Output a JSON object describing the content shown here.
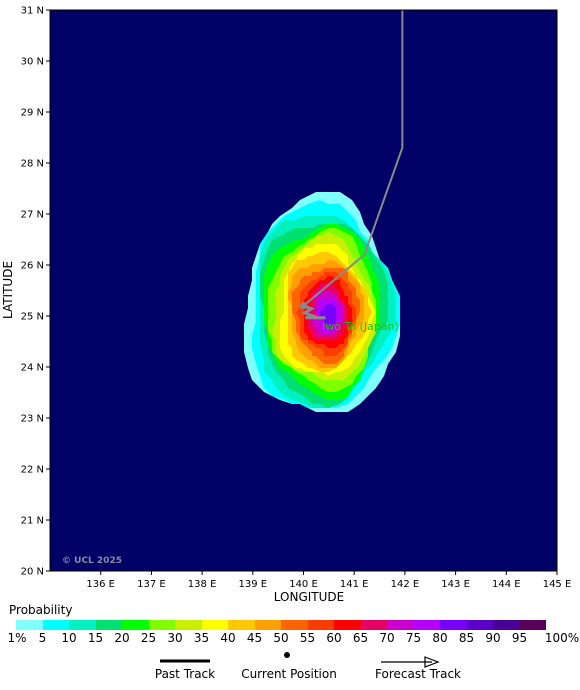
{
  "map": {
    "lat_labels": [
      "31 N",
      "30 N",
      "29 N",
      "28 N",
      "27 N",
      "26 N",
      "25 N",
      "24 N",
      "23 N",
      "22 N",
      "21 N",
      "20 N"
    ],
    "lon_labels": [
      "136 E",
      "137 E",
      "138 E",
      "139 E",
      "140 E",
      "141 E",
      "142 E",
      "143 E",
      "144 E",
      "145 E"
    ],
    "x_axis_title": "LONGITUDE",
    "y_axis_title": "LATITUDE",
    "place_label": "Iwo To (Japan)",
    "watermark": "© UCL 2025",
    "ocean_color": "#000066",
    "track_color": "#8a8a8a",
    "center_lon": 140.4,
    "center_lat": 25.0,
    "track_points": [
      [
        141.95,
        31.0
      ],
      [
        141.95,
        28.3
      ],
      [
        141.2,
        26.2
      ],
      [
        140.0,
        25.2
      ]
    ]
  },
  "legend": {
    "title": "Probability",
    "scale_labels": [
      "1%",
      "5",
      "10",
      "15",
      "20",
      "25",
      "30",
      "35",
      "40",
      "45",
      "50",
      "55",
      "60",
      "65",
      "70",
      "75",
      "80",
      "85",
      "90",
      "95",
      "100%"
    ],
    "colors": [
      "#80ffff",
      "#00ffff",
      "#00f0c0",
      "#00e070",
      "#00ff00",
      "#80ff00",
      "#c8f000",
      "#ffff00",
      "#ffc800",
      "#ffa000",
      "#ff6400",
      "#ff3c00",
      "#ff0000",
      "#e60064",
      "#cc00cc",
      "#b400ff",
      "#7800ff",
      "#5a00c8",
      "#460096",
      "#5a005a"
    ],
    "past_track_label": "Past Track",
    "current_position_label": "Current Position",
    "forecast_track_label": "Forecast Track"
  }
}
